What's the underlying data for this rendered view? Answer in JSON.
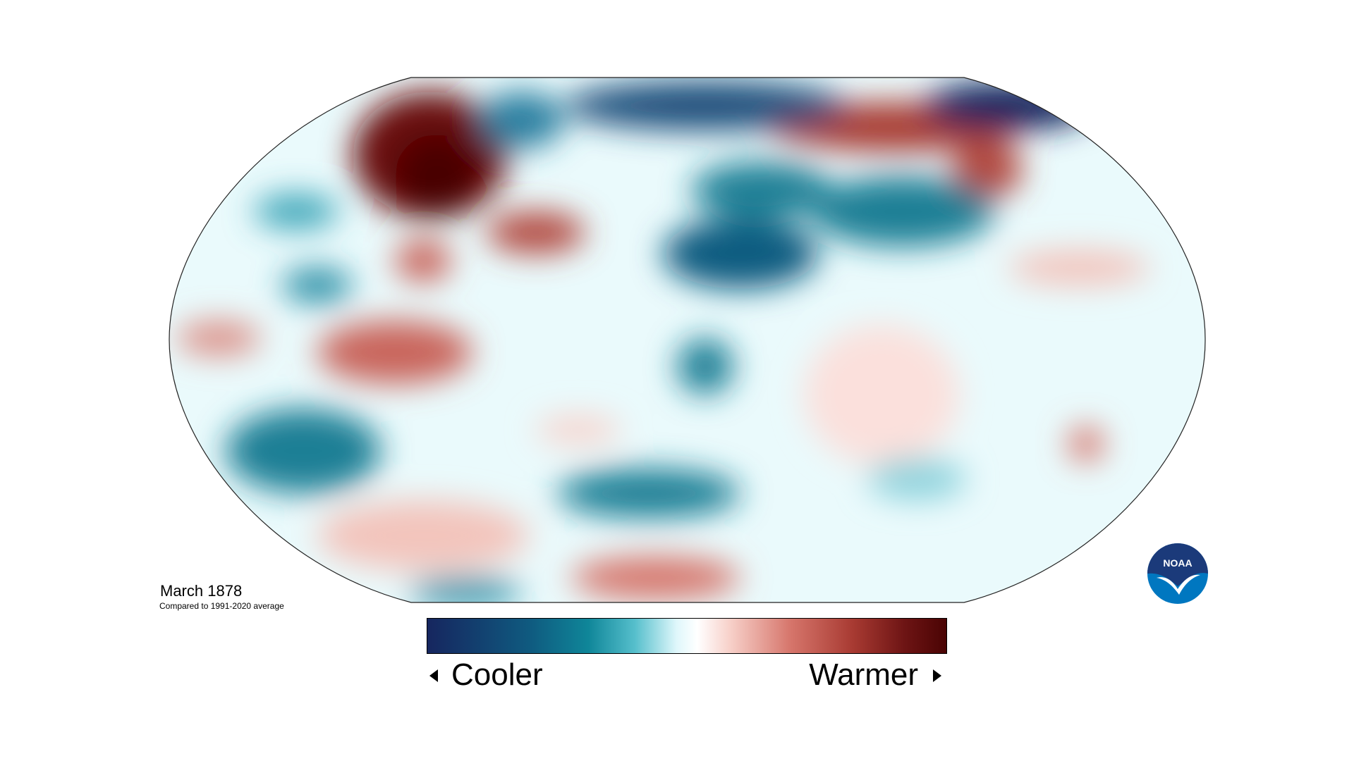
{
  "title": "March 1878",
  "subtitle": "Compared to 1991-2020 average",
  "legend": {
    "low_label": "Cooler",
    "high_label": "Warmer",
    "colors": [
      "#16265f",
      "#0f8699",
      "#ffffff",
      "#d6756b",
      "#4a0404"
    ]
  },
  "logo": {
    "text": "NOAA",
    "colors": {
      "top": "#1b3a7a",
      "bottom": "#0077c0"
    }
  }
}
